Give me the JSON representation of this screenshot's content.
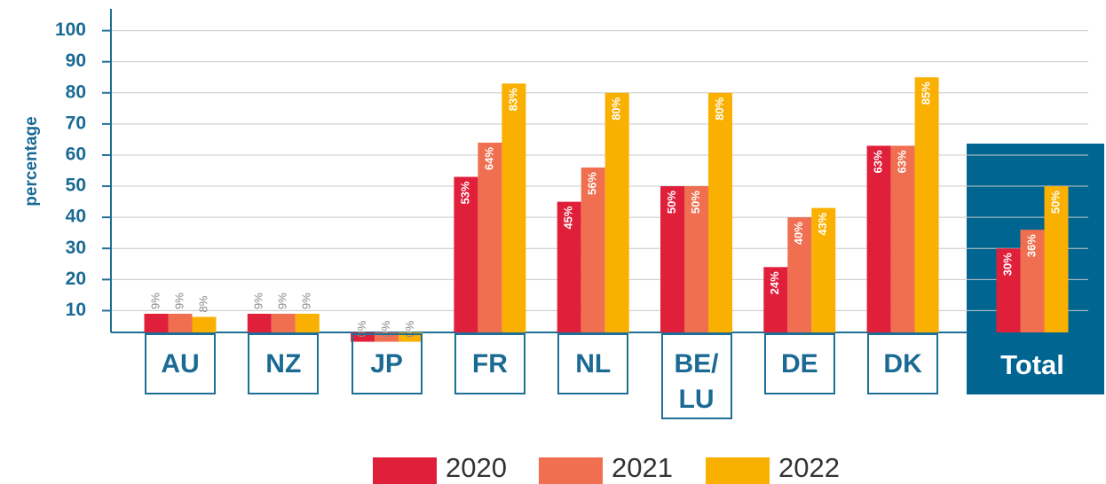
{
  "chart_data": {
    "type": "bar",
    "y_label": "percentage",
    "categories": [
      "AU",
      "NZ",
      "JP",
      "FR",
      "NL",
      "BE/LU",
      "DE",
      "DK",
      "Total"
    ],
    "series": [
      {
        "name": "2020",
        "color": "#e0203b",
        "values": [
          9,
          9,
          0,
          53,
          45,
          50,
          24,
          63,
          30
        ],
        "value_labels": [
          "9%",
          "9%",
          "0%",
          "53%",
          "45%",
          "50%",
          "24%",
          "63%",
          "30%"
        ]
      },
      {
        "name": "2021",
        "color": "#ef6f50",
        "values": [
          9,
          9,
          0,
          64,
          56,
          50,
          40,
          63,
          36
        ],
        "value_labels": [
          "9%",
          "9%",
          "0%",
          "64%",
          "56%",
          "50%",
          "40%",
          "63%",
          "36%"
        ]
      },
      {
        "name": "2022",
        "color": "#f9b000",
        "values": [
          8,
          9,
          0,
          83,
          80,
          80,
          43,
          85,
          50
        ],
        "value_labels": [
          "8%",
          "9%",
          "0%",
          "83%",
          "80%",
          "80%",
          "43%",
          "85%",
          "50%"
        ]
      }
    ],
    "ylim": [
      3,
      107
    ],
    "yticks": [
      10,
      20,
      30,
      40,
      50,
      60,
      70,
      80,
      90,
      100
    ],
    "grid": true
  }
}
